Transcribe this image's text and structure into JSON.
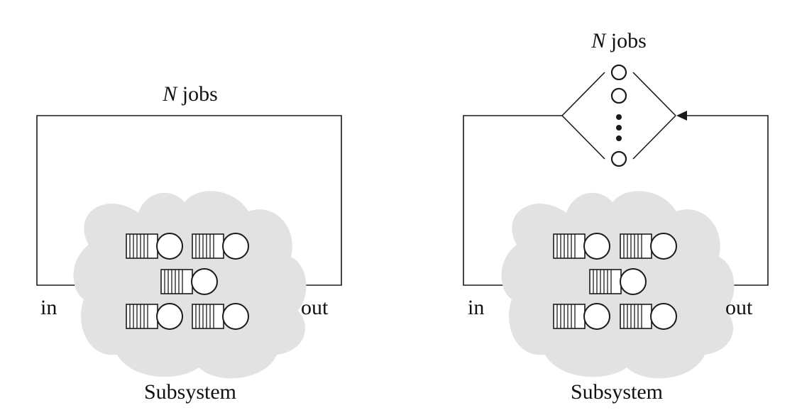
{
  "colors": {
    "ink": "#1a1a1a",
    "cloud": "#e2e2e2",
    "background": "#ffffff"
  },
  "left_diagram": {
    "top_label_var": "N",
    "top_label_text": " jobs",
    "in_label": "in",
    "out_label": "out",
    "subsystem_label": "Subsystem"
  },
  "right_diagram": {
    "top_label_var": "N",
    "top_label_text": " jobs",
    "in_label": "in",
    "out_label": "out",
    "subsystem_label": "Subsystem"
  }
}
